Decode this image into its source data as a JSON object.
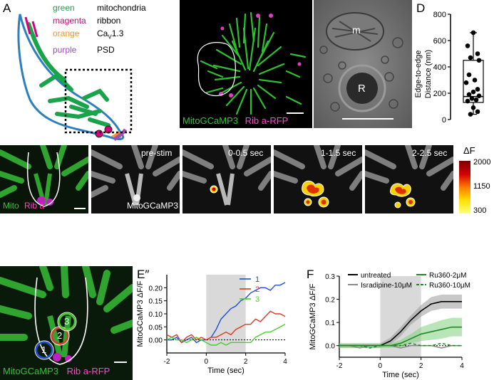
{
  "panel_labels": {
    "a": "A",
    "b": "B",
    "c": "C",
    "d": "D",
    "e": "E",
    "e_prime": "E′",
    "e_double_prime": "E″",
    "f": "F"
  },
  "legend_a": {
    "rows": [
      {
        "color_word": "green",
        "meaning": "mitochondria",
        "color": "#1aa34a"
      },
      {
        "color_word": "magenta",
        "meaning": "ribbon",
        "color": "#d6007f"
      },
      {
        "color_word": "orange",
        "meaning": "Ca",
        "sub": "V",
        "suffix": "1.3",
        "color": "#f7931e"
      },
      {
        "color_word": "purple",
        "meaning": "PSD",
        "color": "#9b4fb9"
      }
    ]
  },
  "panel_b": {
    "label_green": "MitoGCaMP3",
    "label_magenta": "Rib a-RFP"
  },
  "panel_c": {
    "label_m": "m",
    "label_r": "R"
  },
  "panel_e": {
    "first_label_green": "Mito",
    "first_label_magenta": "Rib a",
    "frames": [
      "pre-stim",
      "0-0.5 sec",
      "1-1.5 sec",
      "2-2.5 sec"
    ],
    "frame_bottom_label": "MitoGCaMP3",
    "colorbar": {
      "title": "ΔF",
      "ticks": [
        "2000",
        "1150",
        "300"
      ]
    }
  },
  "panel_e_prime": {
    "label_green": "MitoGCaMP3",
    "label_magenta": "Rib a-RFP",
    "roi": [
      "1",
      "2",
      "3"
    ]
  },
  "colors": {
    "green": "#1aa34a",
    "magenta": "#d6007f",
    "roi1": "#1f4fd6",
    "roi2": "#e03a2a",
    "roi3": "#48d02a"
  },
  "chart_data": [
    {
      "id": "D",
      "type": "box",
      "ylabel": "Edge-to-edge Distance (nm)",
      "ylim": [
        0,
        800
      ],
      "yticks": [
        0,
        200,
        400,
        600,
        800
      ],
      "box": {
        "min": 40,
        "q1": 130,
        "median": 175,
        "q3": 450,
        "max": 660
      },
      "points": [
        660,
        560,
        500,
        470,
        450,
        340,
        300,
        280,
        230,
        210,
        190,
        180,
        160,
        150,
        140,
        90,
        60,
        40
      ]
    },
    {
      "id": "E″",
      "type": "line",
      "ylabel": "MitoGCaMP3 ΔF/F",
      "xlabel": "Time (sec)",
      "xlim": [
        -2,
        4
      ],
      "ylim": [
        -0.05,
        0.25
      ],
      "xticks": [
        -2,
        0,
        2,
        4
      ],
      "yticks": [
        0.0,
        0.05,
        0.1,
        0.15,
        0.2
      ],
      "ytick_labels": [
        "0.00",
        "0.05",
        "0.10",
        "0.15",
        "0.20"
      ],
      "stim_window": [
        0,
        2
      ],
      "series": [
        {
          "name": "1",
          "color": "#1f4fd6",
          "x": [
            -2,
            -1.75,
            -1.5,
            -1.25,
            -1,
            -0.75,
            -0.5,
            -0.25,
            0,
            0.25,
            0.5,
            0.75,
            1,
            1.25,
            1.5,
            1.75,
            2,
            2.25,
            2.5,
            2.75,
            3,
            3.25,
            3.5,
            3.75,
            4
          ],
          "y": [
            0.0,
            0.0,
            0.01,
            -0.01,
            0.0,
            0.01,
            -0.01,
            0.0,
            0.0,
            0.01,
            0.04,
            0.08,
            0.1,
            0.12,
            0.13,
            0.15,
            0.16,
            0.18,
            0.19,
            0.2,
            0.2,
            0.19,
            0.21,
            0.21,
            0.22
          ]
        },
        {
          "name": "2",
          "color": "#e03a2a",
          "x": [
            -2,
            -1.75,
            -1.5,
            -1.25,
            -1,
            -0.75,
            -0.5,
            -0.25,
            0,
            0.25,
            0.5,
            0.75,
            1,
            1.25,
            1.5,
            1.75,
            2,
            2.25,
            2.5,
            2.75,
            3,
            3.25,
            3.5,
            3.75,
            4
          ],
          "y": [
            0.02,
            0.01,
            0.02,
            -0.01,
            0.01,
            0.02,
            0.0,
            0.01,
            0.0,
            0.01,
            0.01,
            0.02,
            0.03,
            0.02,
            0.04,
            0.05,
            0.06,
            0.06,
            0.08,
            0.07,
            0.09,
            0.11,
            0.1,
            0.1,
            0.09
          ]
        },
        {
          "name": "3",
          "color": "#48d02a",
          "x": [
            -2,
            -1.75,
            -1.5,
            -1.25,
            -1,
            -0.75,
            -0.5,
            -0.25,
            0,
            0.25,
            0.5,
            0.75,
            1,
            1.25,
            1.5,
            1.75,
            2,
            2.25,
            2.5,
            2.75,
            3,
            3.25,
            3.5,
            3.75,
            4
          ],
          "y": [
            0.0,
            0.01,
            0.0,
            0.0,
            -0.01,
            0.0,
            0.01,
            0.0,
            -0.01,
            -0.02,
            -0.02,
            -0.01,
            -0.02,
            -0.01,
            -0.01,
            -0.01,
            -0.01,
            -0.01,
            0.01,
            0.02,
            0.03,
            0.03,
            0.04,
            0.05,
            0.06
          ]
        }
      ]
    },
    {
      "id": "F",
      "type": "line",
      "ylabel": "MitoGCaMP3 ΔF/F",
      "xlabel": "Time (sec)",
      "xlim": [
        -2,
        4
      ],
      "ylim": [
        -0.05,
        0.3
      ],
      "xticks": [
        -2,
        0,
        2,
        4
      ],
      "yticks": [
        0.0,
        0.1,
        0.2,
        0.3
      ],
      "ytick_labels": [
        "0.0",
        "0.1",
        "0.2",
        "0.3"
      ],
      "stim_window": [
        0,
        2
      ],
      "series": [
        {
          "name": "untreated",
          "color": "#000000",
          "dash": false,
          "band": true,
          "band_color": "#9a9a9a",
          "x": [
            -2,
            -1.5,
            -1,
            -0.5,
            0,
            0.5,
            1,
            1.5,
            2,
            2.5,
            3,
            3.5,
            4
          ],
          "y": [
            0.0,
            0.0,
            0.0,
            0.0,
            0.0,
            0.02,
            0.06,
            0.11,
            0.15,
            0.18,
            0.19,
            0.19,
            0.19
          ],
          "err": [
            0.01,
            0.01,
            0.01,
            0.01,
            0.01,
            0.015,
            0.02,
            0.02,
            0.025,
            0.03,
            0.03,
            0.03,
            0.03
          ]
        },
        {
          "name": "Isradipine-10μM",
          "color": "#8a8a8a",
          "dash": false,
          "band": false,
          "x": [
            -2,
            -1.5,
            -1,
            -0.5,
            0,
            0.5,
            1,
            1.5,
            2,
            2.5,
            3,
            3.5,
            4
          ],
          "y": [
            0.0,
            0.0,
            -0.01,
            0.0,
            0.0,
            0.0,
            -0.01,
            0.0,
            0.0,
            0.0,
            -0.01,
            0.0,
            0.0
          ]
        },
        {
          "name": "Ru360-2μM",
          "color": "#1e8a1e",
          "dash": false,
          "band": true,
          "band_color": "#7fd07f",
          "x": [
            -2,
            -1.5,
            -1,
            -0.5,
            0,
            0.5,
            1,
            1.5,
            2,
            2.5,
            3,
            3.5,
            4
          ],
          "y": [
            0.0,
            0.0,
            0.0,
            0.0,
            0.0,
            0.0,
            0.01,
            0.03,
            0.05,
            0.06,
            0.07,
            0.08,
            0.08
          ],
          "err": [
            0.01,
            0.01,
            0.01,
            0.01,
            0.01,
            0.01,
            0.015,
            0.02,
            0.03,
            0.035,
            0.04,
            0.04,
            0.04
          ]
        },
        {
          "name": "Ru360-10μM",
          "color": "#1e8a1e",
          "dash": true,
          "band": false,
          "x": [
            -2,
            -1.5,
            -1,
            -0.5,
            0,
            0.5,
            1,
            1.5,
            2,
            2.5,
            3,
            3.5,
            4
          ],
          "y": [
            0.0,
            0.0,
            0.0,
            -0.01,
            0.0,
            0.0,
            0.0,
            0.01,
            0.0,
            0.0,
            0.01,
            0.0,
            0.0
          ]
        }
      ]
    }
  ]
}
